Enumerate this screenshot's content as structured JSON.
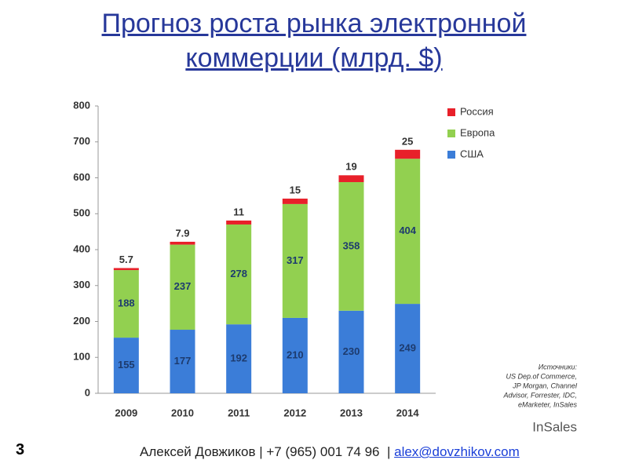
{
  "chart_data": {
    "type": "bar",
    "stacked": true,
    "title": "Прогноз роста рынка электронной коммерции (млрд. $)",
    "categories": [
      "2009",
      "2010",
      "2011",
      "2012",
      "2013",
      "2014"
    ],
    "series": [
      {
        "name": "США",
        "color": "#3b7dd8",
        "values": [
          155,
          177,
          192,
          210,
          230,
          249
        ]
      },
      {
        "name": "Европа",
        "color": "#92d050",
        "values": [
          188,
          237,
          278,
          317,
          358,
          404
        ]
      },
      {
        "name": "Россия",
        "color": "#e8202a",
        "values": [
          5.7,
          7.9,
          11,
          15,
          19,
          25
        ]
      }
    ],
    "ylim": [
      0,
      800
    ],
    "yticks": [
      0,
      100,
      200,
      300,
      400,
      500,
      600,
      700,
      800
    ],
    "grid": false
  },
  "sources": [
    "Источники:",
    "US Dep.of Commerce,",
    "JP Morgan, Channel",
    "Advisor, Forrester, IDC,",
    "eMarketer, InSales"
  ],
  "logo": "InSales",
  "page_number": "3",
  "footer": {
    "text": "Алексей Довжиков | +7 (965) 001 74 96  |",
    "email": "alex@dovzhikov.com"
  }
}
